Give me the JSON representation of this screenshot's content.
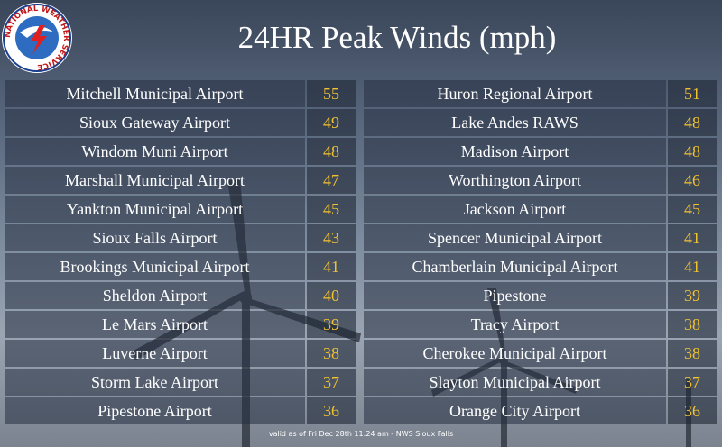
{
  "logo": {
    "text": "NATIONAL WEATHER SERVICE"
  },
  "header": {
    "title": "24HR Peak Winds (mph)"
  },
  "table": {
    "left": [
      {
        "name": "Mitchell Municipal Airport",
        "value": "55"
      },
      {
        "name": "Sioux Gateway Airport",
        "value": "49"
      },
      {
        "name": "Windom Muni Airport",
        "value": "48"
      },
      {
        "name": "Marshall Municipal Airport",
        "value": "47"
      },
      {
        "name": "Yankton Municipal Airport",
        "value": "45"
      },
      {
        "name": "Sioux Falls Airport",
        "value": "43"
      },
      {
        "name": "Brookings Municipal Airport",
        "value": "41"
      },
      {
        "name": "Sheldon Airport",
        "value": "40"
      },
      {
        "name": "Le Mars Airport",
        "value": "39"
      },
      {
        "name": "Luverne Airport",
        "value": "38"
      },
      {
        "name": "Storm Lake Airport",
        "value": "37"
      },
      {
        "name": "Pipestone Airport",
        "value": "36"
      }
    ],
    "right": [
      {
        "name": "Huron Regional Airport",
        "value": "51"
      },
      {
        "name": "Lake Andes RAWS",
        "value": "48"
      },
      {
        "name": "Madison Airport",
        "value": "48"
      },
      {
        "name": "Worthington Airport",
        "value": "46"
      },
      {
        "name": "Jackson Airport",
        "value": "45"
      },
      {
        "name": "Spencer Municipal Airport",
        "value": "41"
      },
      {
        "name": "Chamberlain Municipal Airport",
        "value": "41"
      },
      {
        "name": "Pipestone",
        "value": "39"
      },
      {
        "name": "Tracy Airport",
        "value": "38"
      },
      {
        "name": "Cherokee Municipal Airport",
        "value": "38"
      },
      {
        "name": "Slayton Municipal Airport",
        "value": "37"
      },
      {
        "name": "Orange City Airport",
        "value": "36"
      }
    ]
  },
  "footer": {
    "text": "valid as of Fri Dec 28th 11:24 am - NWS Sioux Falls"
  }
}
